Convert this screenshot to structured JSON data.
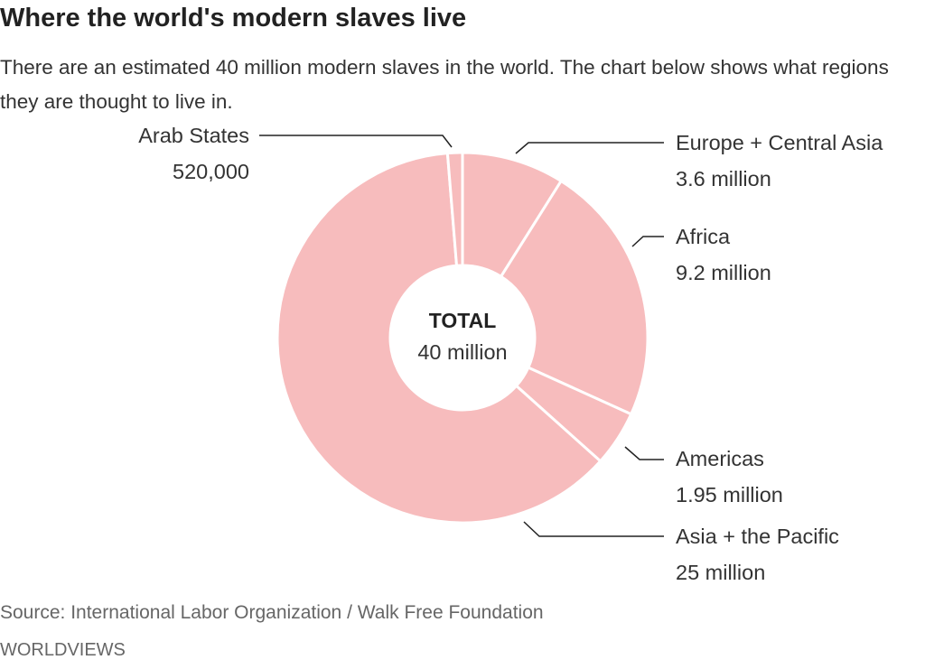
{
  "chart_data": {
    "type": "pie",
    "title": "Where the world's modern slaves live",
    "subtitle": "There are an estimated 40 million modern slaves in the world. The chart below shows what regions they are thought to live in.",
    "center_label": {
      "title": "TOTAL",
      "value": "40 million"
    },
    "slices": [
      {
        "name": "Europe + Central Asia",
        "value": 3.6,
        "label": "3.6 million"
      },
      {
        "name": "Africa",
        "value": 9.2,
        "label": "9.2 million"
      },
      {
        "name": "Americas",
        "value": 1.95,
        "label": "1.95 million"
      },
      {
        "name": "Asia + the Pacific",
        "value": 25,
        "label": "25 million"
      },
      {
        "name": "Arab States",
        "value": 0.52,
        "label": "520,000"
      }
    ],
    "unit": "million",
    "color": "#f7bcbd",
    "source": "Source: International Labor Organization / Walk Free Foundation",
    "brand": "WORLDVIEWS"
  }
}
